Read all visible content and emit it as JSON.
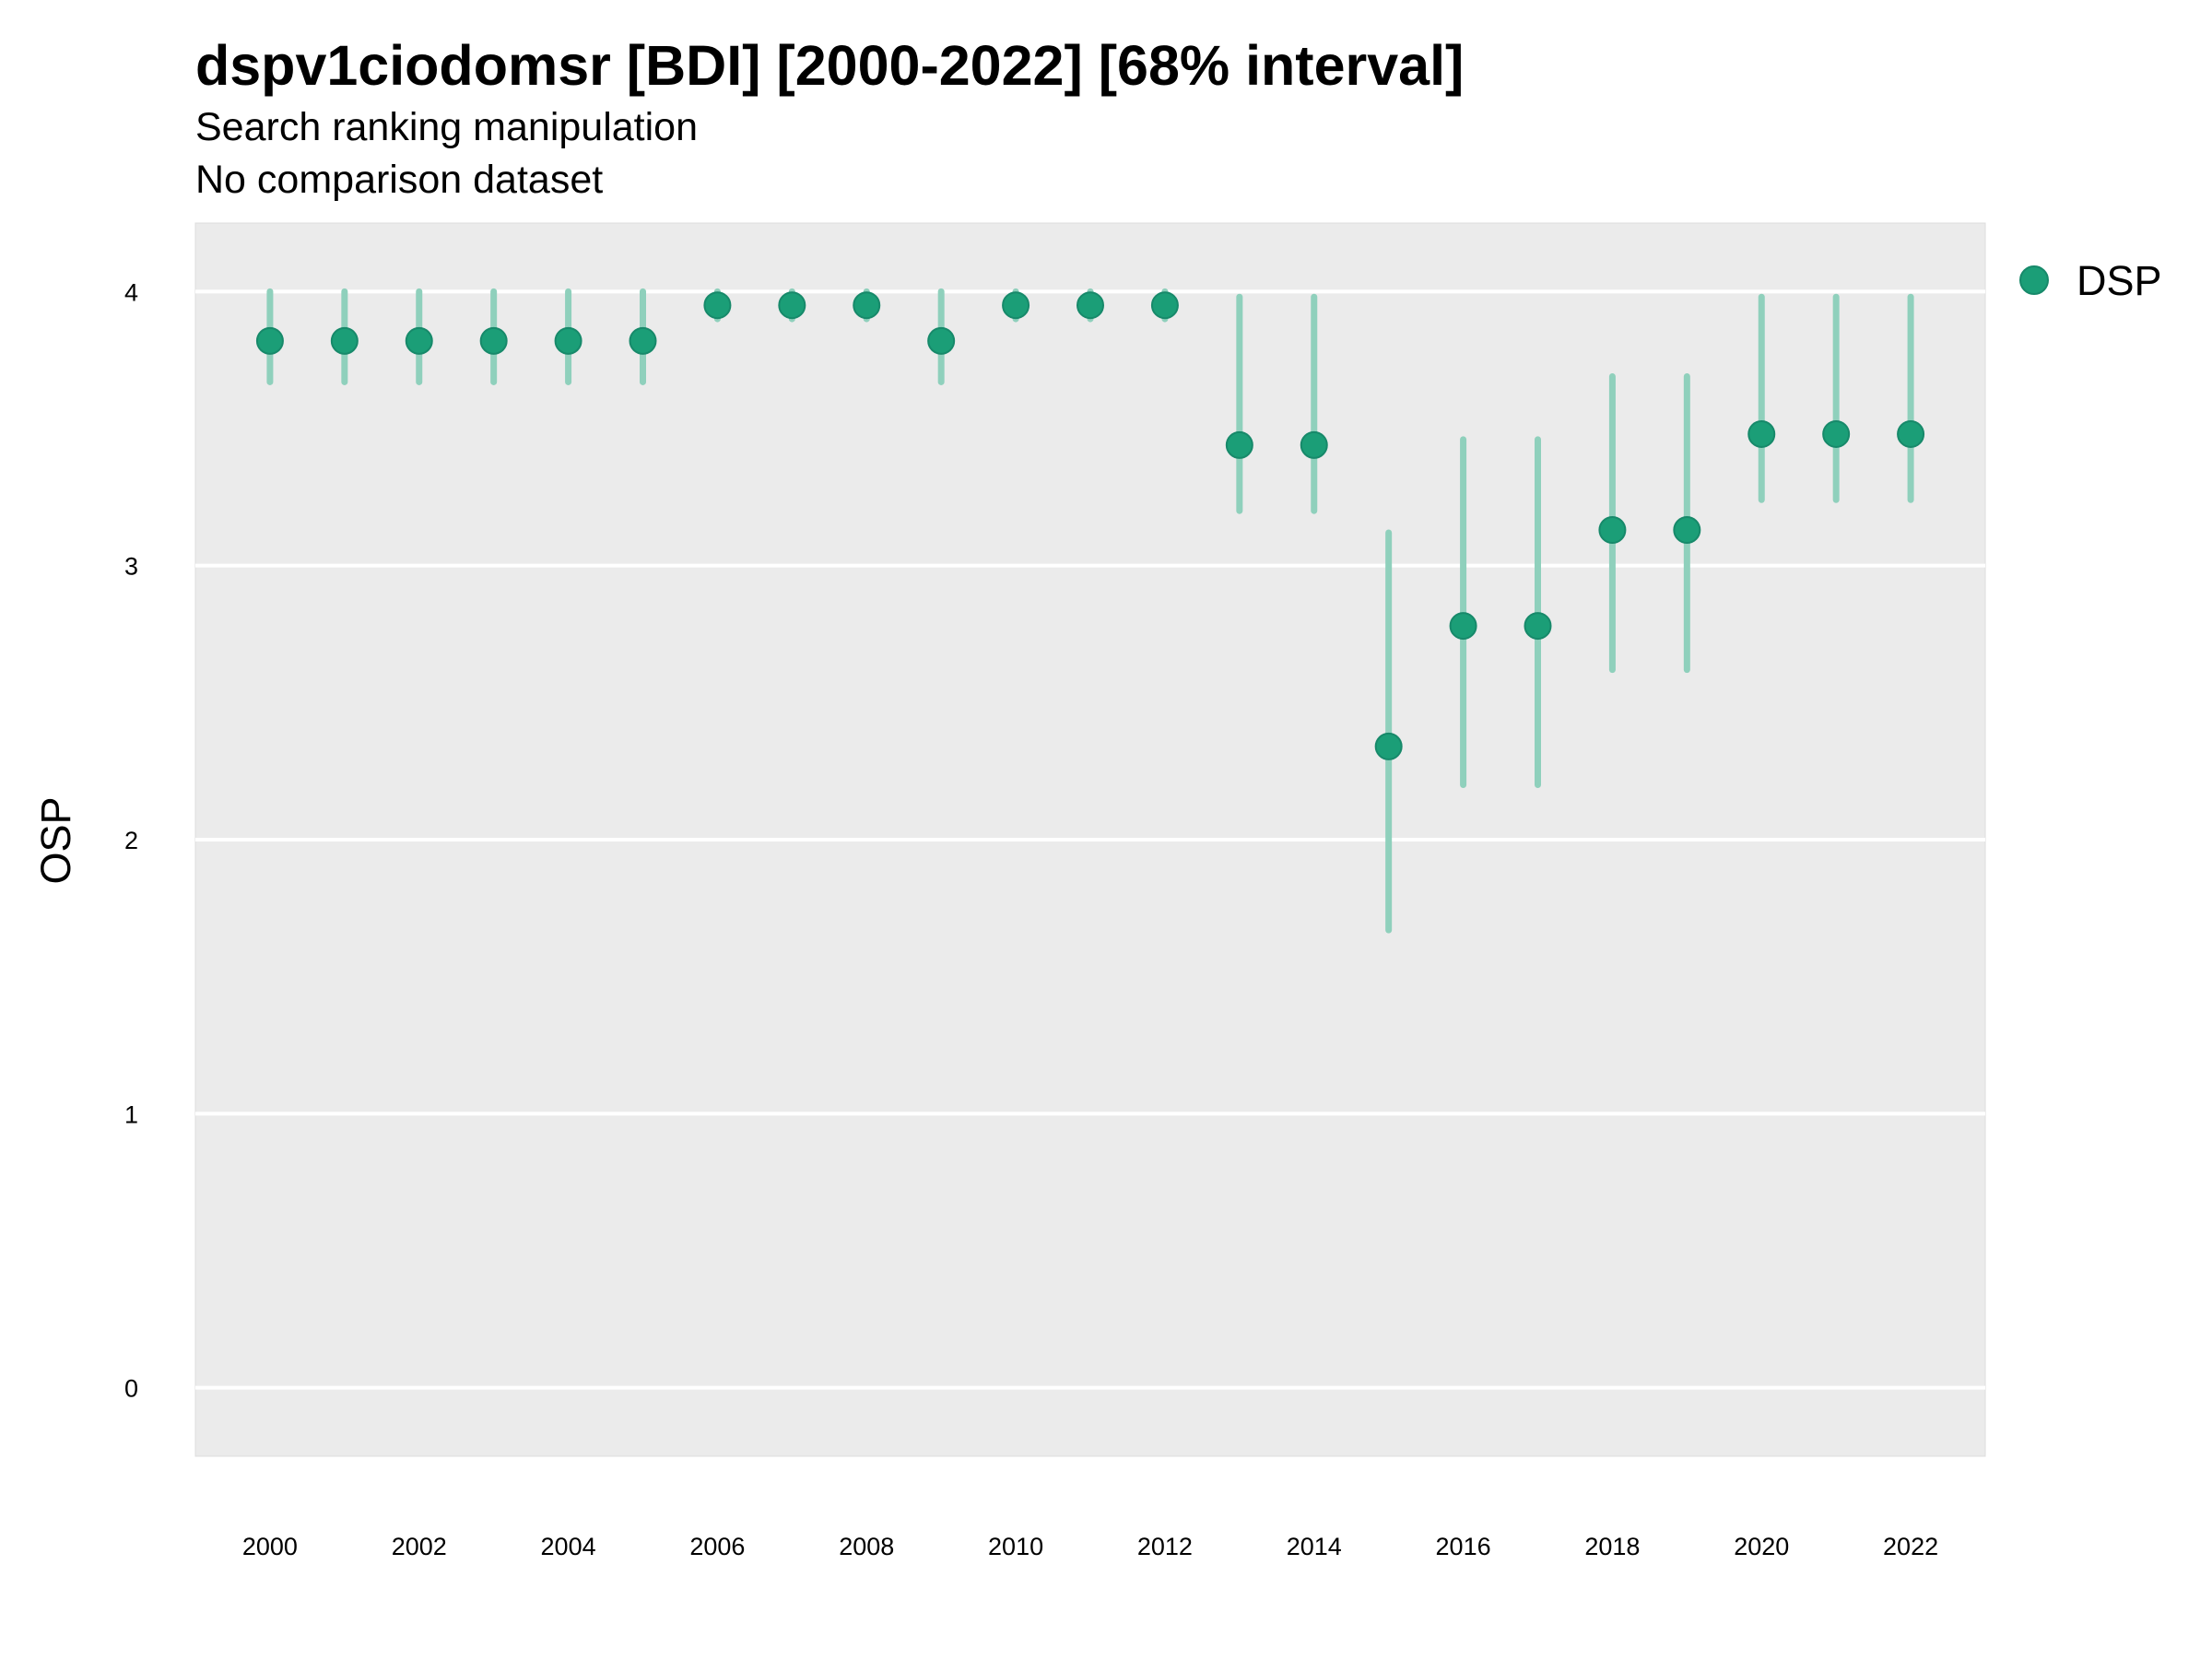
{
  "chart_data": {
    "type": "scatter",
    "title": "dspv1ciodomsr [BDI] [2000-2022] [68% interval]",
    "subtitle": "Search ranking manipulation",
    "caption": "No comparison dataset",
    "ylabel": "OSP",
    "xlabel": "",
    "ylim": [
      -0.25,
      4.25
    ],
    "xlim": [
      1999,
      2023
    ],
    "y_ticks": [
      0,
      1,
      2,
      3,
      4
    ],
    "x_ticks": [
      2000,
      2002,
      2004,
      2006,
      2008,
      2010,
      2012,
      2014,
      2016,
      2018,
      2020,
      2022
    ],
    "grid": "horizontal",
    "legend_position": "right",
    "colors": {
      "point": "#1b9e77",
      "interval": "#8fd0bc",
      "panel": "#ebebeb",
      "grid": "#ffffff"
    },
    "series": [
      {
        "name": "DSP",
        "x": [
          2000,
          2001,
          2002,
          2003,
          2004,
          2005,
          2006,
          2007,
          2008,
          2009,
          2010,
          2011,
          2012,
          2013,
          2014,
          2015,
          2016,
          2017,
          2018,
          2019,
          2020,
          2021,
          2022
        ],
        "y": [
          3.82,
          3.82,
          3.82,
          3.82,
          3.82,
          3.82,
          3.95,
          3.95,
          3.95,
          3.82,
          3.95,
          3.95,
          3.95,
          3.44,
          3.44,
          2.34,
          2.78,
          2.78,
          3.13,
          3.13,
          3.48,
          3.48,
          3.48
        ],
        "lower": [
          3.67,
          3.67,
          3.67,
          3.67,
          3.67,
          3.67,
          3.9,
          3.9,
          3.9,
          3.67,
          3.9,
          3.9,
          3.9,
          3.2,
          3.2,
          1.67,
          2.2,
          2.2,
          2.62,
          2.62,
          3.24,
          3.24,
          3.24
        ],
        "upper": [
          4.0,
          4.0,
          4.0,
          4.0,
          4.0,
          4.0,
          4.0,
          4.0,
          4.0,
          4.0,
          4.0,
          4.0,
          4.0,
          3.98,
          3.98,
          3.12,
          3.46,
          3.46,
          3.69,
          3.69,
          3.98,
          3.98,
          3.98
        ]
      }
    ]
  }
}
